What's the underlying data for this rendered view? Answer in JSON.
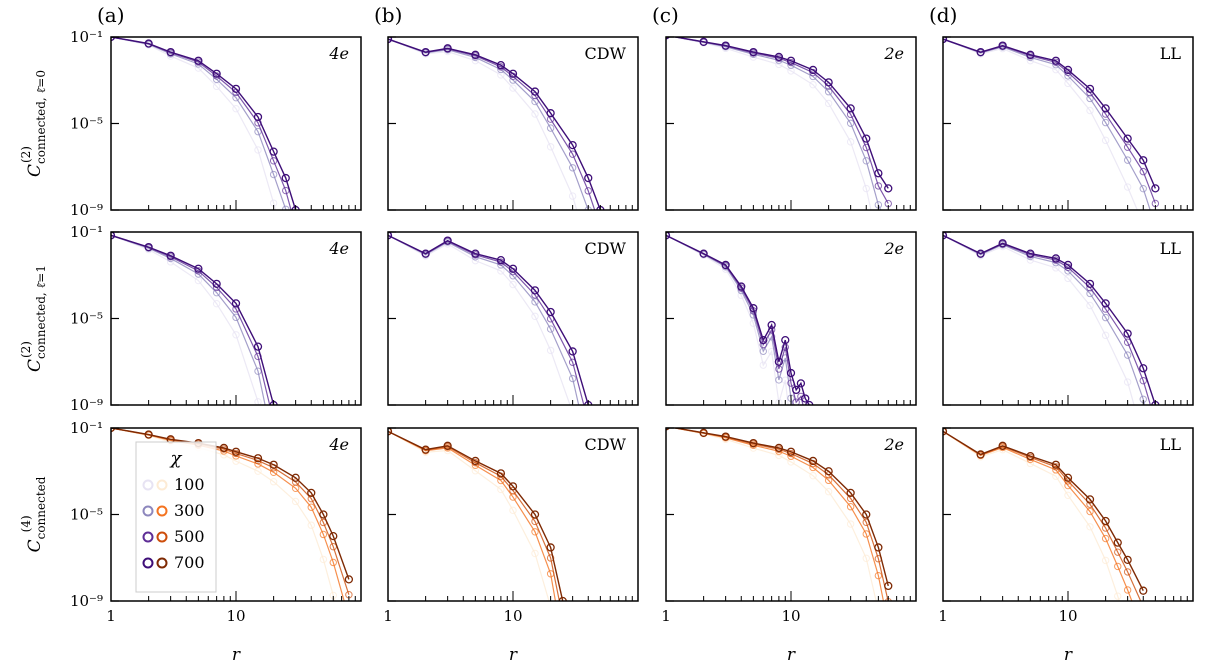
{
  "figure": {
    "column_labels": [
      "(a)",
      "(b)",
      "(c)",
      "(d)"
    ],
    "row_ylabels": [
      {
        "main": "C",
        "sup": "(2)",
        "sub": "connected, ℓ̄=0"
      },
      {
        "main": "C",
        "sup": "(2)",
        "sub": "connected, ℓ̄=1"
      },
      {
        "main": "C",
        "sup": "(4)",
        "sub": "connected"
      }
    ],
    "xlabel": "r",
    "x_tick_labels": [
      "1",
      "10"
    ],
    "y_tick_labels": [
      "10⁻¹",
      "10⁻⁵",
      "10⁻⁹"
    ],
    "legend": {
      "title": "χ",
      "entries": [
        "100",
        "300",
        "500",
        "700"
      ]
    },
    "colors": {
      "purple": [
        "#e7e3f3",
        "#8d87bd",
        "#5e2d96",
        "#3e0e78"
      ],
      "orange": [
        "#fdebd5",
        "#f47320",
        "#cd4d0a",
        "#7e2903"
      ]
    }
  },
  "chart_data": [
    {
      "type": "line",
      "panel": "row1-a",
      "label": "4e",
      "palette": "purple",
      "x_scale": "log",
      "y_scale": "log",
      "xlim": [
        1,
        100
      ],
      "ylim": [
        1e-09,
        1
      ],
      "series": [
        {
          "name": "700",
          "x": [
            1,
            2,
            3,
            5,
            7,
            10,
            15,
            20,
            25,
            30
          ],
          "y": [
            0.1,
            0.05,
            0.02,
            0.008,
            0.002,
            0.0004,
            2e-05,
            5e-07,
            3e-08,
            1e-09
          ]
        }
      ]
    },
    {
      "type": "line",
      "panel": "row1-b",
      "label": "CDW",
      "palette": "purple",
      "x_scale": "log",
      "y_scale": "log",
      "xlim": [
        1,
        100
      ],
      "ylim": [
        1e-09,
        1
      ],
      "series": [
        {
          "name": "700",
          "x": [
            1,
            2,
            3,
            5,
            8,
            10,
            15,
            20,
            30,
            40,
            50
          ],
          "y": [
            0.08,
            0.02,
            0.03,
            0.015,
            0.005,
            0.002,
            0.0003,
            3e-05,
            1e-06,
            3e-08,
            1e-09
          ]
        }
      ]
    },
    {
      "type": "line",
      "panel": "row1-c",
      "label": "2e",
      "palette": "purple",
      "x_scale": "log",
      "y_scale": "log",
      "xlim": [
        1,
        100
      ],
      "ylim": [
        1e-09,
        1
      ],
      "series": [
        {
          "name": "700",
          "x": [
            1,
            2,
            3,
            5,
            8,
            10,
            15,
            20,
            30,
            40,
            50,
            60
          ],
          "y": [
            0.12,
            0.06,
            0.04,
            0.02,
            0.012,
            0.008,
            0.003,
            0.0008,
            5e-05,
            2e-06,
            5e-08,
            1e-08
          ]
        }
      ]
    },
    {
      "type": "line",
      "panel": "row1-d",
      "label": "LL",
      "palette": "purple",
      "x_scale": "log",
      "y_scale": "log",
      "xlim": [
        1,
        100
      ],
      "ylim": [
        1e-09,
        1
      ],
      "series": [
        {
          "name": "700",
          "x": [
            1,
            2,
            3,
            5,
            8,
            10,
            15,
            20,
            30,
            40,
            50
          ],
          "y": [
            0.08,
            0.02,
            0.04,
            0.015,
            0.008,
            0.003,
            0.0004,
            5e-05,
            2e-06,
            2e-07,
            1e-08
          ]
        }
      ]
    },
    {
      "type": "line",
      "panel": "row2-a",
      "label": "4e",
      "palette": "purple",
      "x_scale": "log",
      "y_scale": "log",
      "xlim": [
        1,
        100
      ],
      "ylim": [
        1e-09,
        1
      ],
      "series": [
        {
          "name": "700",
          "x": [
            1,
            2,
            3,
            5,
            7,
            10,
            15,
            20
          ],
          "y": [
            0.07,
            0.02,
            0.008,
            0.002,
            0.0004,
            5e-05,
            5e-07,
            1e-09
          ]
        }
      ]
    },
    {
      "type": "line",
      "panel": "row2-b",
      "label": "CDW",
      "palette": "purple",
      "x_scale": "log",
      "y_scale": "log",
      "xlim": [
        1,
        100
      ],
      "ylim": [
        1e-09,
        1
      ],
      "series": [
        {
          "name": "700",
          "x": [
            1,
            2,
            3,
            5,
            8,
            10,
            15,
            20,
            30,
            40
          ],
          "y": [
            0.07,
            0.01,
            0.04,
            0.01,
            0.005,
            0.002,
            0.0002,
            2e-05,
            3e-07,
            1e-09
          ]
        }
      ]
    },
    {
      "type": "line",
      "panel": "row2-c",
      "label": "2e",
      "palette": "purple",
      "x_scale": "log",
      "y_scale": "log",
      "xlim": [
        1,
        100
      ],
      "ylim": [
        1e-09,
        1
      ],
      "series": [
        {
          "name": "700",
          "x": [
            1,
            2,
            3,
            4,
            5,
            6,
            7,
            8,
            9,
            10,
            11,
            12,
            13,
            14
          ],
          "y": [
            0.07,
            0.01,
            0.003,
            0.0003,
            3e-05,
            1e-06,
            5e-06,
            1e-07,
            1e-06,
            3e-08,
            5e-09,
            1e-08,
            2e-09,
            1e-09
          ]
        }
      ]
    },
    {
      "type": "line",
      "panel": "row2-d",
      "label": "LL",
      "palette": "purple",
      "x_scale": "log",
      "y_scale": "log",
      "xlim": [
        1,
        100
      ],
      "ylim": [
        1e-09,
        1
      ],
      "series": [
        {
          "name": "700",
          "x": [
            1,
            2,
            3,
            5,
            8,
            10,
            15,
            20,
            30,
            40,
            50
          ],
          "y": [
            0.07,
            0.01,
            0.03,
            0.01,
            0.006,
            0.003,
            0.0004,
            5e-05,
            2e-06,
            5e-08,
            1e-09
          ]
        }
      ]
    },
    {
      "type": "line",
      "panel": "row3-a",
      "label": "4e",
      "palette": "orange",
      "x_scale": "log",
      "y_scale": "log",
      "xlim": [
        1,
        100
      ],
      "ylim": [
        1e-09,
        1
      ],
      "series": [
        {
          "name": "700",
          "x": [
            1,
            2,
            3,
            5,
            8,
            10,
            15,
            20,
            30,
            40,
            50,
            60,
            80
          ],
          "y": [
            0.1,
            0.05,
            0.03,
            0.02,
            0.012,
            0.008,
            0.004,
            0.002,
            0.0005,
            0.0001,
            1e-05,
            1e-06,
            1e-08
          ]
        }
      ]
    },
    {
      "type": "line",
      "panel": "row3-b",
      "label": "CDW",
      "palette": "orange",
      "x_scale": "log",
      "y_scale": "log",
      "xlim": [
        1,
        100
      ],
      "ylim": [
        1e-09,
        1
      ],
      "series": [
        {
          "name": "700",
          "x": [
            1,
            2,
            3,
            5,
            8,
            10,
            15,
            20,
            25
          ],
          "y": [
            0.07,
            0.01,
            0.015,
            0.003,
            0.0008,
            0.0002,
            1e-05,
            3e-07,
            1e-09
          ]
        }
      ]
    },
    {
      "type": "line",
      "panel": "row3-c",
      "label": "2e",
      "palette": "orange",
      "x_scale": "log",
      "y_scale": "log",
      "xlim": [
        1,
        100
      ],
      "ylim": [
        1e-09,
        1
      ],
      "series": [
        {
          "name": "700",
          "x": [
            1,
            2,
            3,
            5,
            8,
            10,
            15,
            20,
            30,
            40,
            50,
            60
          ],
          "y": [
            0.12,
            0.06,
            0.04,
            0.02,
            0.012,
            0.008,
            0.003,
            0.001,
            0.0001,
            1e-05,
            3e-07,
            5e-09
          ]
        }
      ]
    },
    {
      "type": "line",
      "panel": "row3-d",
      "label": "LL",
      "palette": "orange",
      "x_scale": "log",
      "y_scale": "log",
      "xlim": [
        1,
        100
      ],
      "ylim": [
        1e-09,
        1
      ],
      "series": [
        {
          "name": "700",
          "x": [
            1,
            2,
            3,
            5,
            8,
            10,
            15,
            20,
            25,
            30,
            40
          ],
          "y": [
            0.07,
            0.006,
            0.015,
            0.005,
            0.002,
            0.0005,
            5e-05,
            5e-06,
            5e-07,
            8e-08,
            3e-09
          ]
        }
      ]
    }
  ]
}
